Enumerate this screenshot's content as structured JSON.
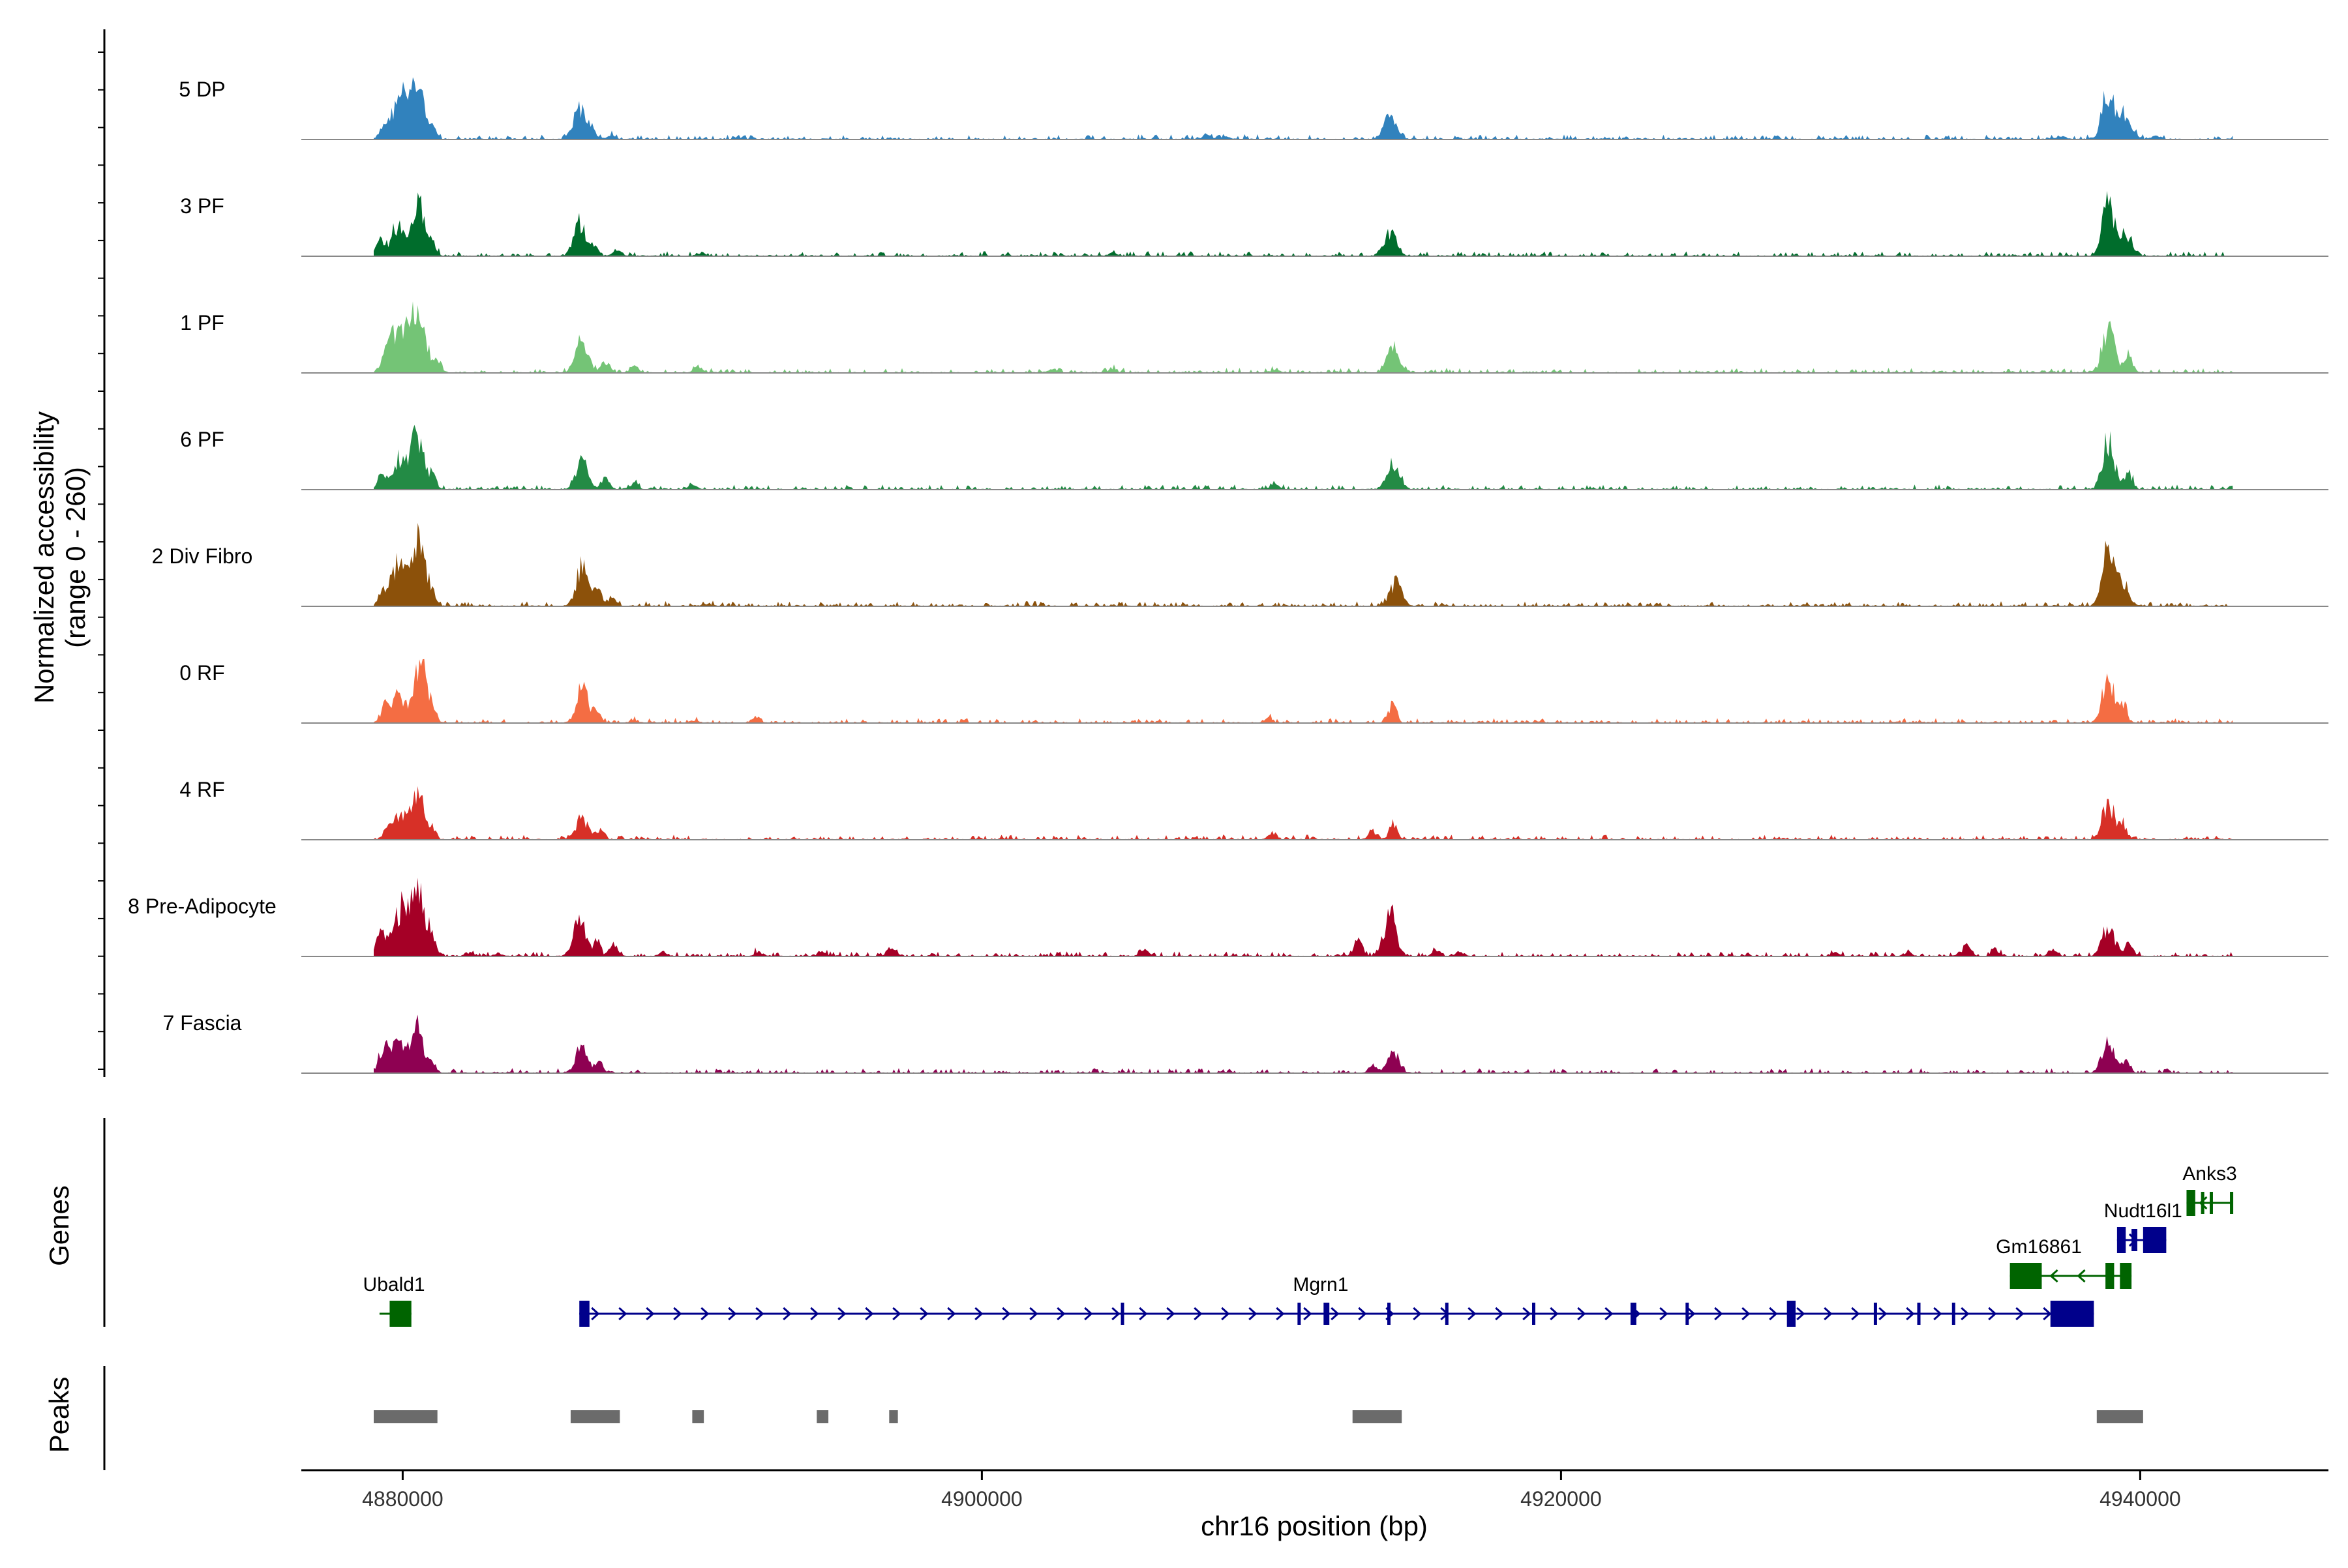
{
  "chart_data": {
    "type": "area",
    "title": "",
    "region_chrom": "chr16",
    "xlabel": "chr16 position (bp)",
    "ylabel": "Normalized accessibility",
    "ylabel_range": "(range 0 - 260)",
    "ylim": [
      0,
      260
    ],
    "xlim": [
      4876500,
      4946500
    ],
    "x_ticks": [
      {
        "value": 4880000,
        "label": "4880000"
      },
      {
        "value": 4900000,
        "label": "4900000"
      },
      {
        "value": 4920000,
        "label": "4920000"
      },
      {
        "value": 4940000,
        "label": "4940000"
      }
    ],
    "signal_extent": [
      4879000,
      4943200
    ],
    "panel_labels": {
      "genes": "Genes",
      "peaks": "Peaks"
    },
    "series": [
      {
        "name": "5 DP",
        "color": "#3182BD",
        "peaks": [
          {
            "x": 4879300,
            "h": 0.15
          },
          {
            "x": 4879700,
            "h": 0.35
          },
          {
            "x": 4880000,
            "h": 0.62
          },
          {
            "x": 4880500,
            "h": 0.92
          },
          {
            "x": 4881000,
            "h": 0.2
          },
          {
            "x": 4886100,
            "h": 0.55
          },
          {
            "x": 4886500,
            "h": 0.2
          },
          {
            "x": 4887200,
            "h": 0.06
          },
          {
            "x": 4907800,
            "h": 0.1
          },
          {
            "x": 4908400,
            "h": 0.05
          },
          {
            "x": 4914100,
            "h": 0.38
          },
          {
            "x": 4938900,
            "h": 0.88
          },
          {
            "x": 4939500,
            "h": 0.45
          },
          {
            "x": 4937300,
            "h": 0.06
          },
          {
            "x": 4940500,
            "h": 0.06
          }
        ]
      },
      {
        "name": "3 PF",
        "color": "#006D2C",
        "peaks": [
          {
            "x": 4879200,
            "h": 0.3
          },
          {
            "x": 4879800,
            "h": 0.55
          },
          {
            "x": 4880500,
            "h": 1.0
          },
          {
            "x": 4881000,
            "h": 0.3
          },
          {
            "x": 4886100,
            "h": 0.5
          },
          {
            "x": 4886600,
            "h": 0.2
          },
          {
            "x": 4887400,
            "h": 0.1
          },
          {
            "x": 4890300,
            "h": 0.05
          },
          {
            "x": 4904500,
            "h": 0.05
          },
          {
            "x": 4914100,
            "h": 0.42
          },
          {
            "x": 4938900,
            "h": 0.95
          },
          {
            "x": 4939500,
            "h": 0.4
          }
        ]
      },
      {
        "name": "1 PF",
        "color": "#74C476",
        "peaks": [
          {
            "x": 4879400,
            "h": 0.3
          },
          {
            "x": 4879800,
            "h": 0.75
          },
          {
            "x": 4880300,
            "h": 0.85
          },
          {
            "x": 4880700,
            "h": 0.6
          },
          {
            "x": 4881200,
            "h": 0.2
          },
          {
            "x": 4886200,
            "h": 0.6
          },
          {
            "x": 4887000,
            "h": 0.2
          },
          {
            "x": 4888000,
            "h": 0.1
          },
          {
            "x": 4890200,
            "h": 0.12
          },
          {
            "x": 4902400,
            "h": 0.05
          },
          {
            "x": 4904500,
            "h": 0.07
          },
          {
            "x": 4910100,
            "h": 0.06
          },
          {
            "x": 4914200,
            "h": 0.4
          },
          {
            "x": 4938900,
            "h": 0.78
          },
          {
            "x": 4939600,
            "h": 0.3
          }
        ]
      },
      {
        "name": "6 PF",
        "color": "#238B45",
        "peaks": [
          {
            "x": 4879300,
            "h": 0.3
          },
          {
            "x": 4879900,
            "h": 0.55
          },
          {
            "x": 4880500,
            "h": 0.98
          },
          {
            "x": 4881000,
            "h": 0.25
          },
          {
            "x": 4886200,
            "h": 0.45
          },
          {
            "x": 4887000,
            "h": 0.2
          },
          {
            "x": 4888000,
            "h": 0.1
          },
          {
            "x": 4890000,
            "h": 0.08
          },
          {
            "x": 4910100,
            "h": 0.1
          },
          {
            "x": 4914200,
            "h": 0.5
          },
          {
            "x": 4938900,
            "h": 0.85
          },
          {
            "x": 4939600,
            "h": 0.3
          }
        ]
      },
      {
        "name": "2 Div Fibro",
        "color": "#8C510A",
        "peaks": [
          {
            "x": 4879300,
            "h": 0.25
          },
          {
            "x": 4879800,
            "h": 0.7
          },
          {
            "x": 4880300,
            "h": 0.5
          },
          {
            "x": 4880600,
            "h": 0.95
          },
          {
            "x": 4881000,
            "h": 0.2
          },
          {
            "x": 4886200,
            "h": 0.7
          },
          {
            "x": 4886700,
            "h": 0.3
          },
          {
            "x": 4887200,
            "h": 0.15
          },
          {
            "x": 4890500,
            "h": 0.05
          },
          {
            "x": 4914300,
            "h": 0.4
          },
          {
            "x": 4938900,
            "h": 0.95
          },
          {
            "x": 4939400,
            "h": 0.4
          }
        ]
      },
      {
        "name": "0 RF",
        "color": "#F46D43",
        "peaks": [
          {
            "x": 4879400,
            "h": 0.3
          },
          {
            "x": 4879900,
            "h": 0.5
          },
          {
            "x": 4880600,
            "h": 1.0
          },
          {
            "x": 4881000,
            "h": 0.3
          },
          {
            "x": 4886200,
            "h": 0.55
          },
          {
            "x": 4886700,
            "h": 0.2
          },
          {
            "x": 4888000,
            "h": 0.05
          },
          {
            "x": 4890100,
            "h": 0.05
          },
          {
            "x": 4892200,
            "h": 0.1
          },
          {
            "x": 4909900,
            "h": 0.07
          },
          {
            "x": 4914200,
            "h": 0.3
          },
          {
            "x": 4938900,
            "h": 0.75
          },
          {
            "x": 4939400,
            "h": 0.3
          }
        ]
      },
      {
        "name": "4 RF",
        "color": "#D73027",
        "peaks": [
          {
            "x": 4879500,
            "h": 0.25
          },
          {
            "x": 4879900,
            "h": 0.45
          },
          {
            "x": 4880500,
            "h": 0.92
          },
          {
            "x": 4881000,
            "h": 0.2
          },
          {
            "x": 4886200,
            "h": 0.35
          },
          {
            "x": 4886800,
            "h": 0.15
          },
          {
            "x": 4910000,
            "h": 0.08
          },
          {
            "x": 4913500,
            "h": 0.15
          },
          {
            "x": 4914200,
            "h": 0.3
          },
          {
            "x": 4938900,
            "h": 0.65
          },
          {
            "x": 4939400,
            "h": 0.25
          }
        ]
      },
      {
        "name": "8 Pre-Adipocyte",
        "color": "#A50026",
        "peaks": [
          {
            "x": 4879300,
            "h": 0.38
          },
          {
            "x": 4879900,
            "h": 0.75
          },
          {
            "x": 4880300,
            "h": 0.55
          },
          {
            "x": 4880600,
            "h": 0.9
          },
          {
            "x": 4881000,
            "h": 0.3
          },
          {
            "x": 4882300,
            "h": 0.06
          },
          {
            "x": 4883300,
            "h": 0.06
          },
          {
            "x": 4886100,
            "h": 0.68
          },
          {
            "x": 4886700,
            "h": 0.25
          },
          {
            "x": 4887300,
            "h": 0.2
          },
          {
            "x": 4889000,
            "h": 0.08
          },
          {
            "x": 4892300,
            "h": 0.08
          },
          {
            "x": 4894500,
            "h": 0.08
          },
          {
            "x": 4896900,
            "h": 0.18
          },
          {
            "x": 4905600,
            "h": 0.1
          },
          {
            "x": 4913000,
            "h": 0.3
          },
          {
            "x": 4914100,
            "h": 0.75
          },
          {
            "x": 4915700,
            "h": 0.1
          },
          {
            "x": 4916500,
            "h": 0.07
          },
          {
            "x": 4929500,
            "h": 0.06
          },
          {
            "x": 4932000,
            "h": 0.06
          },
          {
            "x": 4934000,
            "h": 0.2
          },
          {
            "x": 4935000,
            "h": 0.12
          },
          {
            "x": 4937000,
            "h": 0.1
          },
          {
            "x": 4938900,
            "h": 0.55
          },
          {
            "x": 4939600,
            "h": 0.2
          }
        ]
      },
      {
        "name": "7 Fascia",
        "color": "#8E0152",
        "peaks": [
          {
            "x": 4879400,
            "h": 0.4
          },
          {
            "x": 4879900,
            "h": 0.5
          },
          {
            "x": 4880500,
            "h": 0.85
          },
          {
            "x": 4881000,
            "h": 0.2
          },
          {
            "x": 4886200,
            "h": 0.45
          },
          {
            "x": 4886800,
            "h": 0.15
          },
          {
            "x": 4913500,
            "h": 0.12
          },
          {
            "x": 4914200,
            "h": 0.35
          },
          {
            "x": 4938900,
            "h": 0.55
          },
          {
            "x": 4939500,
            "h": 0.2
          }
        ]
      }
    ],
    "genes": [
      {
        "name": "Ubald1",
        "strand": "-",
        "color": "#006400",
        "row": 0,
        "start": 4879200,
        "end": 4880300,
        "exons": [
          [
            4879550,
            4880300
          ]
        ],
        "label_x": 4879700,
        "show_label": true
      },
      {
        "name": "Mgrn1",
        "strand": "+",
        "color": "#00008B",
        "row": 0,
        "start": 4886100,
        "end": 4938400,
        "exons": [
          [
            4886100,
            4886450
          ],
          [
            4904800,
            4904900
          ],
          [
            4910900,
            4911000
          ],
          [
            4911800,
            4912000
          ],
          [
            4914000,
            4914100
          ],
          [
            4916000,
            4916100
          ],
          [
            4919000,
            4919100
          ],
          [
            4922400,
            4922600
          ],
          [
            4924300,
            4924400
          ],
          [
            4927800,
            4928100
          ],
          [
            4930800,
            4930900
          ],
          [
            4932300,
            4932400
          ],
          [
            4933500,
            4933600
          ],
          [
            4936900,
            4938400
          ]
        ],
        "label_x": 4911700,
        "show_label": true
      },
      {
        "name": "Gm16861",
        "strand": "-",
        "color": "#006400",
        "row": 1,
        "start": 4935500,
        "end": 4939700,
        "exons": [
          [
            4935500,
            4936600
          ],
          [
            4938800,
            4939100
          ],
          [
            4939300,
            4939700
          ]
        ],
        "label_x": 4936500,
        "show_label": true
      },
      {
        "name": "Nudt16l1",
        "strand": "+",
        "color": "#00008B",
        "row": 2,
        "start": 4939200,
        "end": 4940900,
        "exons": [
          [
            4939200,
            4939500
          ],
          [
            4939700,
            4939900
          ],
          [
            4940100,
            4940900
          ]
        ],
        "label_x": 4940100,
        "show_label": true
      },
      {
        "name": "Anks3",
        "strand": "-",
        "color": "#006400",
        "row": 3,
        "start": 4941600,
        "end": 4943200,
        "exons": [
          [
            4941600,
            4941900
          ],
          [
            4942100,
            4942200
          ],
          [
            4942400,
            4942500
          ],
          [
            4943100,
            4943200
          ]
        ],
        "label_x": 4942400,
        "show_label": true
      }
    ],
    "peaks_track": [
      [
        4879000,
        4881200
      ],
      [
        4885800,
        4887500
      ],
      [
        4890000,
        4890400
      ],
      [
        4894300,
        4894700
      ],
      [
        4896800,
        4897100
      ],
      [
        4912800,
        4914500
      ],
      [
        4938500,
        4940100
      ]
    ]
  }
}
